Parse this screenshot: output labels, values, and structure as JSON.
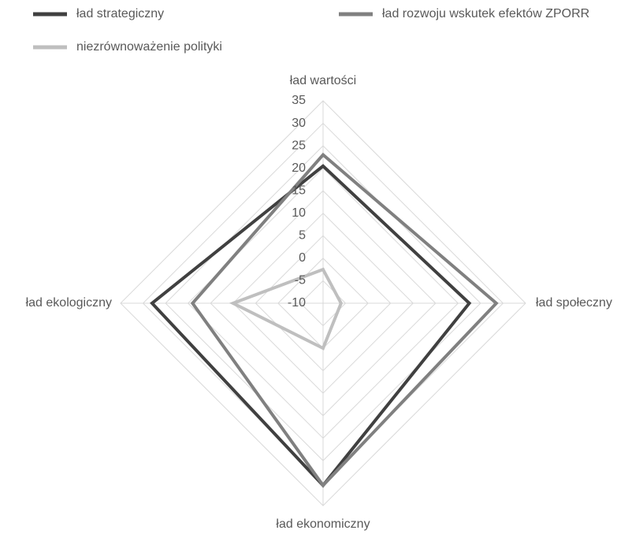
{
  "chart_data": {
    "type": "radar",
    "categories": [
      "ład wartości",
      "ład społeczny",
      "ład ekonomiczny",
      "ład ekologiczny"
    ],
    "series": [
      {
        "name": "ład strategiczny",
        "color": "#404040",
        "values": [
          20.5,
          22.5,
          30.5,
          28
        ]
      },
      {
        "name": "ład rozwoju wskutek efektów ZPORR",
        "color": "#808080",
        "values": [
          23,
          28.5,
          30.5,
          19
        ]
      },
      {
        "name": "niezrównoważenie polityki",
        "color": "#bfbfbf",
        "values": [
          -2.5,
          -6,
          0,
          10
        ]
      }
    ],
    "ylim": [
      -10,
      35
    ],
    "yticks": [
      -10,
      -5,
      0,
      5,
      10,
      15,
      20,
      25,
      30,
      35
    ],
    "grid": true,
    "legend": "top"
  }
}
